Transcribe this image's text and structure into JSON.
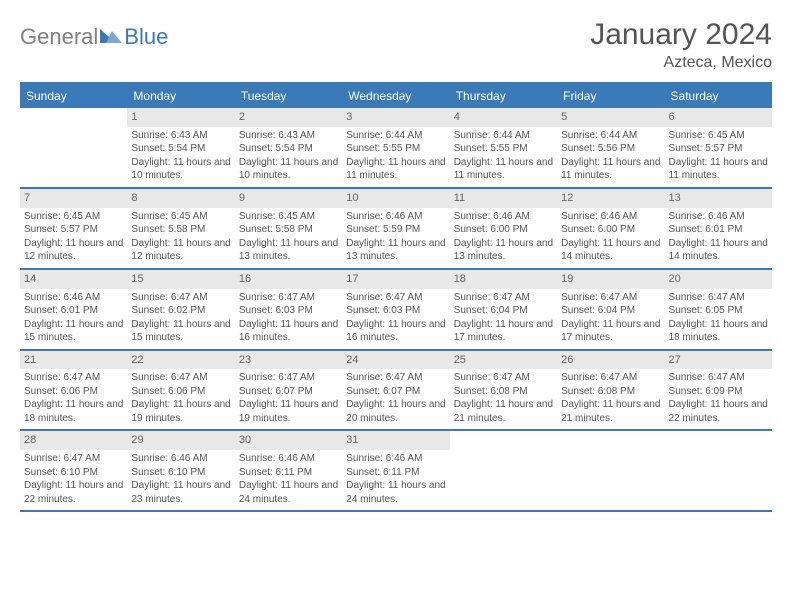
{
  "brand": {
    "general": "General",
    "blue": "Blue"
  },
  "title": "January 2024",
  "location": "Azteca, Mexico",
  "colors": {
    "accent": "#3a7ab8",
    "header_text": "#ffffff",
    "daynum_bg": "#e8e8e8",
    "body_text": "#555555"
  },
  "day_headers": [
    "Sunday",
    "Monday",
    "Tuesday",
    "Wednesday",
    "Thursday",
    "Friday",
    "Saturday"
  ],
  "weeks": [
    [
      {
        "n": "",
        "empty": true
      },
      {
        "n": "1",
        "sunrise": "Sunrise: 6:43 AM",
        "sunset": "Sunset: 5:54 PM",
        "daylight": "Daylight: 11 hours and 10 minutes."
      },
      {
        "n": "2",
        "sunrise": "Sunrise: 6:43 AM",
        "sunset": "Sunset: 5:54 PM",
        "daylight": "Daylight: 11 hours and 10 minutes."
      },
      {
        "n": "3",
        "sunrise": "Sunrise: 6:44 AM",
        "sunset": "Sunset: 5:55 PM",
        "daylight": "Daylight: 11 hours and 11 minutes."
      },
      {
        "n": "4",
        "sunrise": "Sunrise: 6:44 AM",
        "sunset": "Sunset: 5:55 PM",
        "daylight": "Daylight: 11 hours and 11 minutes."
      },
      {
        "n": "5",
        "sunrise": "Sunrise: 6:44 AM",
        "sunset": "Sunset: 5:56 PM",
        "daylight": "Daylight: 11 hours and 11 minutes."
      },
      {
        "n": "6",
        "sunrise": "Sunrise: 6:45 AM",
        "sunset": "Sunset: 5:57 PM",
        "daylight": "Daylight: 11 hours and 11 minutes."
      }
    ],
    [
      {
        "n": "7",
        "sunrise": "Sunrise: 6:45 AM",
        "sunset": "Sunset: 5:57 PM",
        "daylight": "Daylight: 11 hours and 12 minutes."
      },
      {
        "n": "8",
        "sunrise": "Sunrise: 6:45 AM",
        "sunset": "Sunset: 5:58 PM",
        "daylight": "Daylight: 11 hours and 12 minutes."
      },
      {
        "n": "9",
        "sunrise": "Sunrise: 6:45 AM",
        "sunset": "Sunset: 5:58 PM",
        "daylight": "Daylight: 11 hours and 13 minutes."
      },
      {
        "n": "10",
        "sunrise": "Sunrise: 6:46 AM",
        "sunset": "Sunset: 5:59 PM",
        "daylight": "Daylight: 11 hours and 13 minutes."
      },
      {
        "n": "11",
        "sunrise": "Sunrise: 6:46 AM",
        "sunset": "Sunset: 6:00 PM",
        "daylight": "Daylight: 11 hours and 13 minutes."
      },
      {
        "n": "12",
        "sunrise": "Sunrise: 6:46 AM",
        "sunset": "Sunset: 6:00 PM",
        "daylight": "Daylight: 11 hours and 14 minutes."
      },
      {
        "n": "13",
        "sunrise": "Sunrise: 6:46 AM",
        "sunset": "Sunset: 6:01 PM",
        "daylight": "Daylight: 11 hours and 14 minutes."
      }
    ],
    [
      {
        "n": "14",
        "sunrise": "Sunrise: 6:46 AM",
        "sunset": "Sunset: 6:01 PM",
        "daylight": "Daylight: 11 hours and 15 minutes."
      },
      {
        "n": "15",
        "sunrise": "Sunrise: 6:47 AM",
        "sunset": "Sunset: 6:02 PM",
        "daylight": "Daylight: 11 hours and 15 minutes."
      },
      {
        "n": "16",
        "sunrise": "Sunrise: 6:47 AM",
        "sunset": "Sunset: 6:03 PM",
        "daylight": "Daylight: 11 hours and 16 minutes."
      },
      {
        "n": "17",
        "sunrise": "Sunrise: 6:47 AM",
        "sunset": "Sunset: 6:03 PM",
        "daylight": "Daylight: 11 hours and 16 minutes."
      },
      {
        "n": "18",
        "sunrise": "Sunrise: 6:47 AM",
        "sunset": "Sunset: 6:04 PM",
        "daylight": "Daylight: 11 hours and 17 minutes."
      },
      {
        "n": "19",
        "sunrise": "Sunrise: 6:47 AM",
        "sunset": "Sunset: 6:04 PM",
        "daylight": "Daylight: 11 hours and 17 minutes."
      },
      {
        "n": "20",
        "sunrise": "Sunrise: 6:47 AM",
        "sunset": "Sunset: 6:05 PM",
        "daylight": "Daylight: 11 hours and 18 minutes."
      }
    ],
    [
      {
        "n": "21",
        "sunrise": "Sunrise: 6:47 AM",
        "sunset": "Sunset: 6:06 PM",
        "daylight": "Daylight: 11 hours and 18 minutes."
      },
      {
        "n": "22",
        "sunrise": "Sunrise: 6:47 AM",
        "sunset": "Sunset: 6:06 PM",
        "daylight": "Daylight: 11 hours and 19 minutes."
      },
      {
        "n": "23",
        "sunrise": "Sunrise: 6:47 AM",
        "sunset": "Sunset: 6:07 PM",
        "daylight": "Daylight: 11 hours and 19 minutes."
      },
      {
        "n": "24",
        "sunrise": "Sunrise: 6:47 AM",
        "sunset": "Sunset: 6:07 PM",
        "daylight": "Daylight: 11 hours and 20 minutes."
      },
      {
        "n": "25",
        "sunrise": "Sunrise: 6:47 AM",
        "sunset": "Sunset: 6:08 PM",
        "daylight": "Daylight: 11 hours and 21 minutes."
      },
      {
        "n": "26",
        "sunrise": "Sunrise: 6:47 AM",
        "sunset": "Sunset: 6:08 PM",
        "daylight": "Daylight: 11 hours and 21 minutes."
      },
      {
        "n": "27",
        "sunrise": "Sunrise: 6:47 AM",
        "sunset": "Sunset: 6:09 PM",
        "daylight": "Daylight: 11 hours and 22 minutes."
      }
    ],
    [
      {
        "n": "28",
        "sunrise": "Sunrise: 6:47 AM",
        "sunset": "Sunset: 6:10 PM",
        "daylight": "Daylight: 11 hours and 22 minutes."
      },
      {
        "n": "29",
        "sunrise": "Sunrise: 6:46 AM",
        "sunset": "Sunset: 6:10 PM",
        "daylight": "Daylight: 11 hours and 23 minutes."
      },
      {
        "n": "30",
        "sunrise": "Sunrise: 6:46 AM",
        "sunset": "Sunset: 6:11 PM",
        "daylight": "Daylight: 11 hours and 24 minutes."
      },
      {
        "n": "31",
        "sunrise": "Sunrise: 6:46 AM",
        "sunset": "Sunset: 6:11 PM",
        "daylight": "Daylight: 11 hours and 24 minutes."
      },
      {
        "n": "",
        "empty": true
      },
      {
        "n": "",
        "empty": true
      },
      {
        "n": "",
        "empty": true
      }
    ]
  ]
}
